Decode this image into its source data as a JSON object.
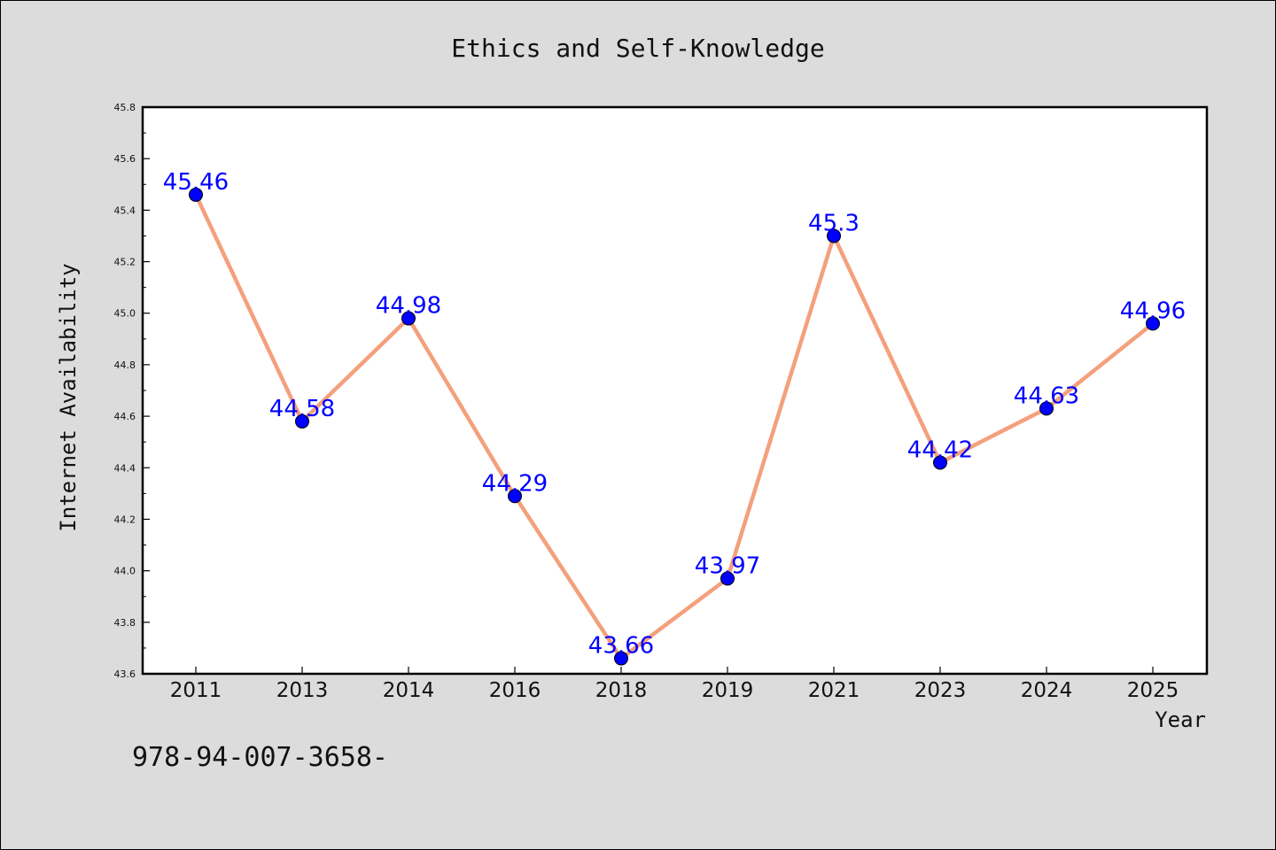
{
  "chart_data": {
    "type": "line",
    "title": "Ethics and Self-Knowledge",
    "xlabel": "Year",
    "ylabel": "Internet Availability",
    "categories": [
      "2011",
      "2013",
      "2014",
      "2016",
      "2018",
      "2019",
      "2021",
      "2023",
      "2024",
      "2025"
    ],
    "series": [
      {
        "values": [
          45.46,
          44.58,
          44.98,
          44.29,
          43.66,
          43.97,
          45.3,
          44.42,
          44.63,
          44.96
        ],
        "data_labels": [
          "45.46",
          "44.58",
          "44.98",
          "44.29",
          "43.66",
          "43.97",
          "45.3",
          "44.42",
          "44.63",
          "44.96"
        ],
        "line_color": "#f4a07c",
        "marker_color": "#0000ff"
      }
    ],
    "ylim": [
      43.6,
      45.8
    ],
    "yticks": [
      "43.6",
      "43.8",
      "44.0",
      "44.2",
      "44.4",
      "44.6",
      "44.8",
      "45.0",
      "45.2",
      "45.4",
      "45.6",
      "45.8"
    ],
    "grid": false,
    "legend": "none",
    "plot_background": "#ffffff",
    "figure_background": "#dcdcdc",
    "label_color": "#0000ff"
  },
  "footnote": "978-94-007-3658-"
}
